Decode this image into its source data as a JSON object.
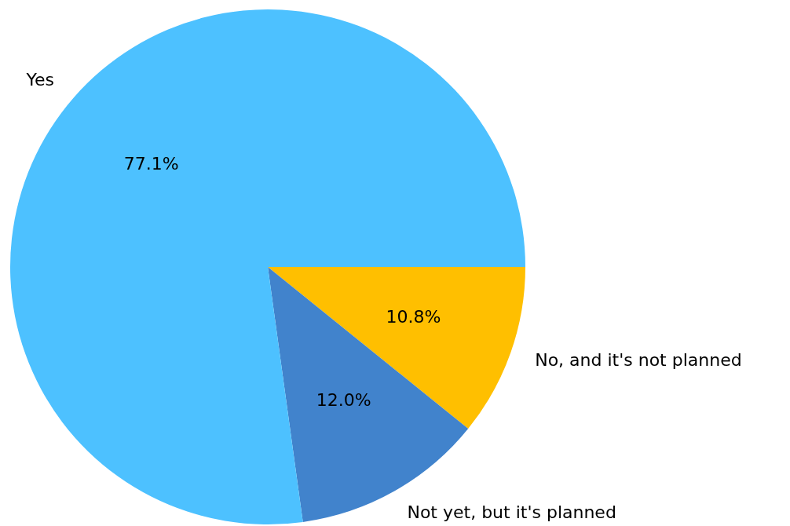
{
  "chart_data": {
    "type": "pie",
    "categories": [
      "Yes",
      "Not yet, but it's planned",
      "No, and it's not planned"
    ],
    "values": [
      77.1,
      12.0,
      10.8
    ],
    "colors": [
      "#4dc1ff",
      "#4183cc",
      "#ffbf00"
    ],
    "value_labels": [
      "77.1%",
      "12.0%",
      "10.8%"
    ],
    "legend": false
  }
}
